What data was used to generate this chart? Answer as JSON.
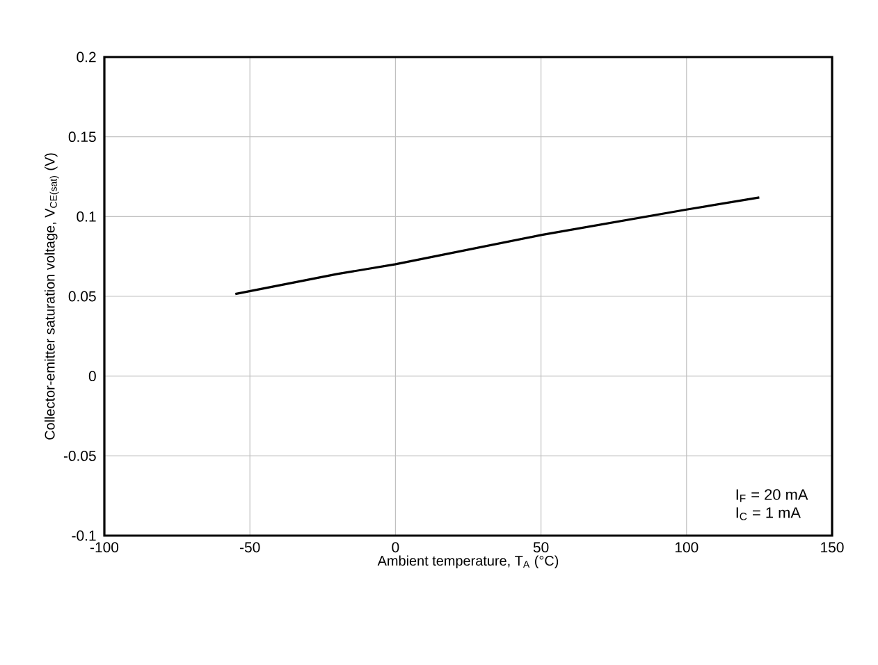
{
  "chart_data": {
    "type": "line",
    "xlabel": "Ambient temperature, T$_{A}$ (°C)",
    "ylabel": "Collector-emitter saturation voltage, V$_{CE(sat)}$ (V)",
    "x": [
      -55,
      -20,
      0,
      50,
      100,
      125
    ],
    "series": [
      {
        "color": "#000000",
        "values": [
          0.0515,
          0.064,
          0.0701,
          0.0884,
          0.1044,
          0.112
        ]
      }
    ],
    "xlim": [
      -100,
      150
    ],
    "ylim": [
      -0.1,
      0.2
    ],
    "xticks": [
      -100,
      -50,
      0,
      50,
      100,
      150
    ],
    "yticks": [
      -0.1,
      -0.05,
      0,
      0.05,
      0.1,
      0.15,
      0.2
    ],
    "grid": true,
    "annotations": [
      "I$_{F}$ = 20 mA",
      "I$_{C}$ = 1 mA"
    ]
  }
}
